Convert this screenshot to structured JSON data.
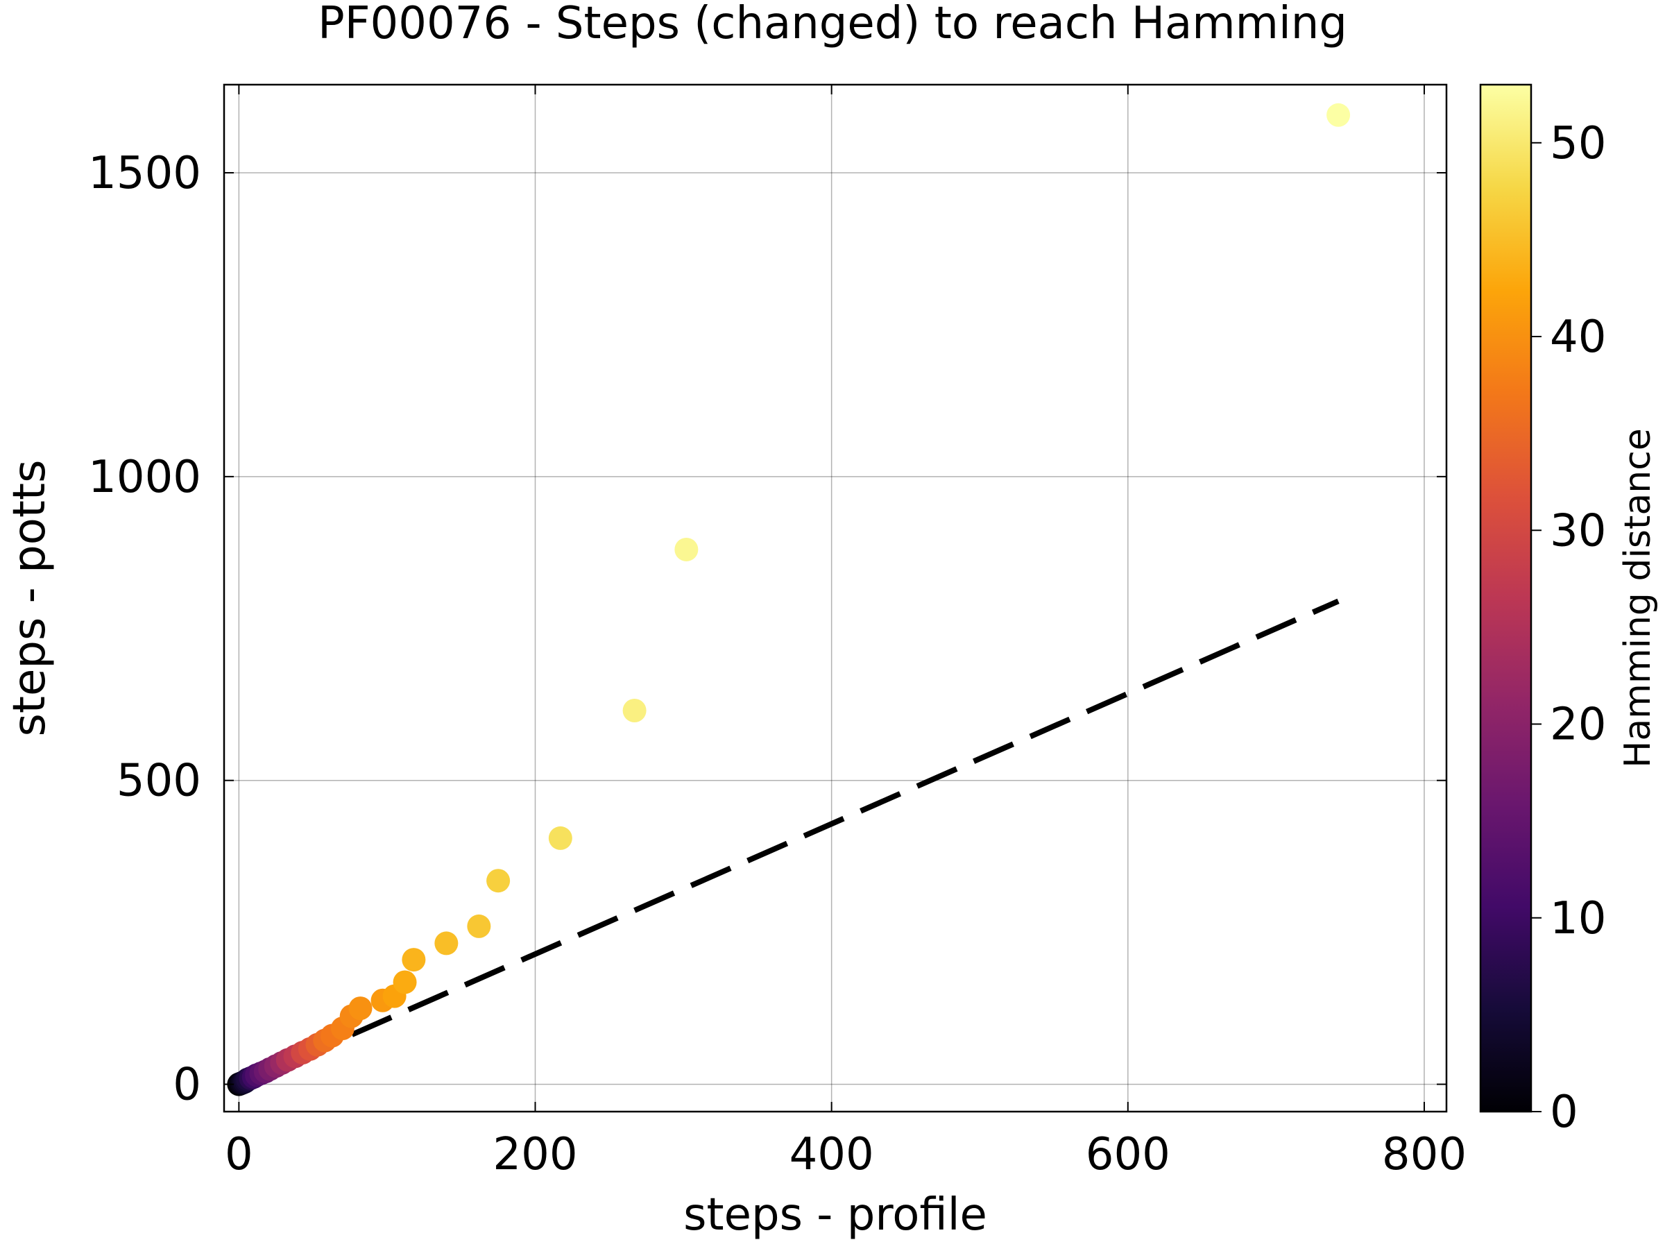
{
  "chart_data": {
    "type": "scatter",
    "title": "PF00076 - Steps (changed) to reach Hamming",
    "xlabel": "steps - profile",
    "ylabel": "steps - potts",
    "xlim": [
      -10,
      815
    ],
    "ylim": [
      -45,
      1645
    ],
    "xticks": [
      0,
      200,
      400,
      600,
      800
    ],
    "yticks": [
      0,
      500,
      1000,
      1500
    ],
    "grid": true,
    "reference_line": {
      "style": "dashed",
      "color": "#000000",
      "x": [
        0,
        742
      ],
      "y": [
        0,
        795
      ]
    },
    "colorbar": {
      "label": "Hamming distance",
      "colormap": "inferno",
      "range": [
        0,
        53
      ],
      "ticks": [
        0,
        10,
        20,
        30,
        40,
        50
      ]
    },
    "points": [
      {
        "x": 0,
        "y": 0,
        "c": 0
      },
      {
        "x": 1,
        "y": 1,
        "c": 1
      },
      {
        "x": 2,
        "y": 2,
        "c": 2
      },
      {
        "x": 3,
        "y": 3,
        "c": 3
      },
      {
        "x": 4,
        "y": 4,
        "c": 4
      },
      {
        "x": 5,
        "y": 6,
        "c": 5
      },
      {
        "x": 6,
        "y": 8,
        "c": 6
      },
      {
        "x": 8,
        "y": 10,
        "c": 8
      },
      {
        "x": 10,
        "y": 12,
        "c": 10
      },
      {
        "x": 12,
        "y": 15,
        "c": 12
      },
      {
        "x": 15,
        "y": 18,
        "c": 14
      },
      {
        "x": 18,
        "y": 21,
        "c": 16
      },
      {
        "x": 21,
        "y": 25,
        "c": 18
      },
      {
        "x": 25,
        "y": 30,
        "c": 20
      },
      {
        "x": 29,
        "y": 35,
        "c": 22
      },
      {
        "x": 33,
        "y": 40,
        "c": 25
      },
      {
        "x": 38,
        "y": 46,
        "c": 27
      },
      {
        "x": 43,
        "y": 52,
        "c": 30
      },
      {
        "x": 48,
        "y": 58,
        "c": 32
      },
      {
        "x": 53,
        "y": 65,
        "c": 34
      },
      {
        "x": 58,
        "y": 72,
        "c": 36
      },
      {
        "x": 63,
        "y": 80,
        "c": 37
      },
      {
        "x": 70,
        "y": 92,
        "c": 38
      },
      {
        "x": 76,
        "y": 112,
        "c": 39
      },
      {
        "x": 82,
        "y": 125,
        "c": 40
      },
      {
        "x": 97,
        "y": 138,
        "c": 41
      },
      {
        "x": 105,
        "y": 145,
        "c": 42
      },
      {
        "x": 112,
        "y": 168,
        "c": 43
      },
      {
        "x": 118,
        "y": 205,
        "c": 44
      },
      {
        "x": 140,
        "y": 232,
        "c": 45
      },
      {
        "x": 162,
        "y": 260,
        "c": 46
      },
      {
        "x": 175,
        "y": 335,
        "c": 47
      },
      {
        "x": 217,
        "y": 405,
        "c": 49
      },
      {
        "x": 267,
        "y": 615,
        "c": 51
      },
      {
        "x": 302,
        "y": 880,
        "c": 52
      },
      {
        "x": 742,
        "y": 1595,
        "c": 53
      }
    ]
  }
}
